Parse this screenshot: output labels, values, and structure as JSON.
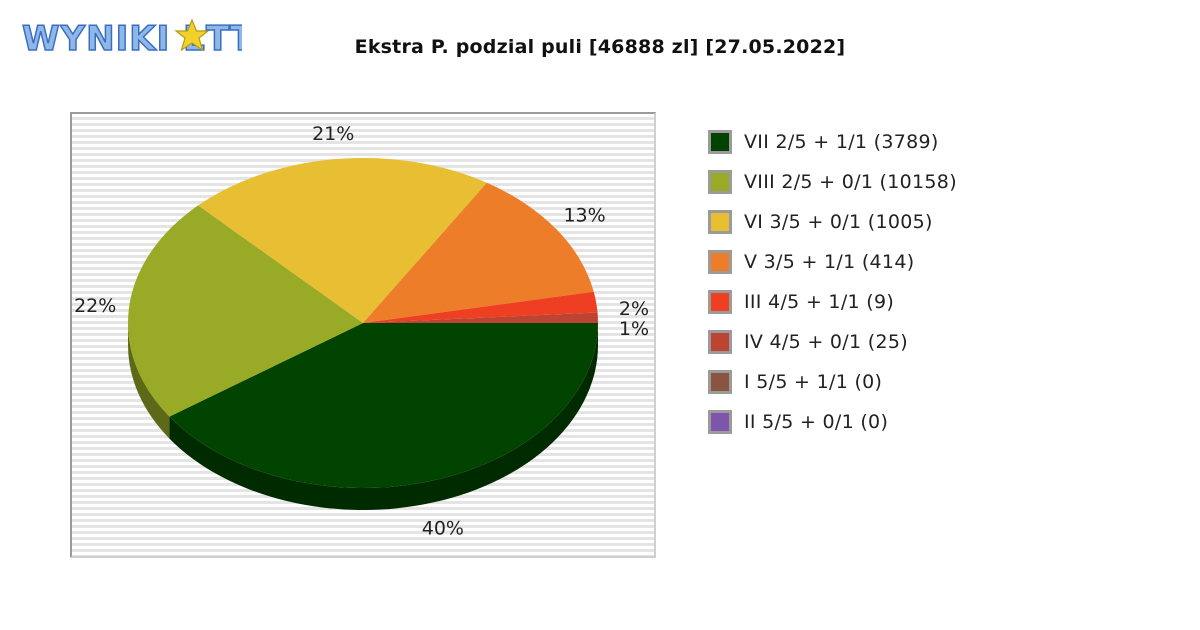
{
  "logo": {
    "text": "WYNIKI LOTTO"
  },
  "title": "Ekstra P. podzial puli [46888 zl] [27.05.2022]",
  "chart_data": {
    "type": "pie",
    "title": "Ekstra P. podzial puli [46888 zl] [27.05.2022]",
    "slices": [
      {
        "label": "VII 2/5 + 1/1 (3789)",
        "value": 40,
        "display": "40%",
        "color": "#004400"
      },
      {
        "label": "VIII 2/5 + 0/1 (10158)",
        "value": 22,
        "display": "22%",
        "color": "#98aa26"
      },
      {
        "label": "VI 3/5 + 0/1 (1005)",
        "value": 21,
        "display": "21%",
        "color": "#e8be33"
      },
      {
        "label": "V 3/5 + 1/1 (414)",
        "value": 13,
        "display": "13%",
        "color": "#ee7d2a"
      },
      {
        "label": "III 4/5 + 1/1 (9)",
        "value": 2,
        "display": "2%",
        "color": "#ee3f22"
      },
      {
        "label": "IV 4/5 + 0/1 (25)",
        "value": 1,
        "display": "1%",
        "color": "#bc4433"
      },
      {
        "label": "I 5/5 + 1/1 (0)",
        "value": 0,
        "display": "",
        "color": "#8a5540"
      },
      {
        "label": "II 5/5 + 0/1 (0)",
        "value": 0,
        "display": "",
        "color": "#7d55aa"
      }
    ],
    "legend_position": "right"
  }
}
